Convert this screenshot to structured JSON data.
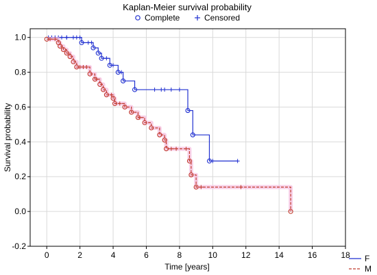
{
  "chart_data": {
    "type": "line",
    "title": "Kaplan-Meier survival probability",
    "xlabel": "Time  [years]",
    "ylabel": "Survival probability",
    "xlim": [
      -1,
      18
    ],
    "ylim": [
      -0.2,
      1.05
    ],
    "xticks": [
      0,
      2,
      4,
      6,
      8,
      10,
      12,
      14,
      16,
      18
    ],
    "yticks": [
      -0.2,
      0.0,
      0.2,
      0.4,
      0.6,
      0.8,
      1.0
    ],
    "grid": true,
    "marker_legend": {
      "position": "top-center",
      "complete_label": "Complete",
      "censored_label": "Censored"
    },
    "series_legend_position": "bottom-right",
    "series": [
      {
        "name": "F",
        "color": "#1f2fd0",
        "line_style": "solid",
        "steps": [
          [
            0,
            1.0
          ],
          [
            2.1,
            0.97
          ],
          [
            2.8,
            0.94
          ],
          [
            3.1,
            0.91
          ],
          [
            3.3,
            0.88
          ],
          [
            3.8,
            0.84
          ],
          [
            4.3,
            0.8
          ],
          [
            4.6,
            0.75
          ],
          [
            5.3,
            0.7
          ],
          [
            8.5,
            0.58
          ],
          [
            8.8,
            0.44
          ],
          [
            9.8,
            0.29
          ],
          [
            11.5,
            0.29
          ]
        ],
        "events": [
          [
            2.1,
            0.97
          ],
          [
            2.8,
            0.94
          ],
          [
            3.1,
            0.91
          ],
          [
            3.3,
            0.88
          ],
          [
            3.8,
            0.84
          ],
          [
            4.3,
            0.8
          ],
          [
            4.6,
            0.75
          ],
          [
            5.3,
            0.7
          ],
          [
            8.5,
            0.58
          ],
          [
            8.8,
            0.44
          ],
          [
            9.8,
            0.29
          ]
        ],
        "censored": [
          [
            0.1,
            1.0
          ],
          [
            0.3,
            1.0
          ],
          [
            0.5,
            1.0
          ],
          [
            0.7,
            1.0
          ],
          [
            0.9,
            1.0
          ],
          [
            1.2,
            1.0
          ],
          [
            1.2,
            1.0
          ],
          [
            1.6,
            1.0
          ],
          [
            1.8,
            1.0
          ],
          [
            2.0,
            1.0
          ],
          [
            2.5,
            0.97
          ],
          [
            2.7,
            0.97
          ],
          [
            3.6,
            0.88
          ],
          [
            4.0,
            0.84
          ],
          [
            4.5,
            0.8
          ],
          [
            6.5,
            0.7
          ],
          [
            6.9,
            0.7
          ],
          [
            7.1,
            0.7
          ],
          [
            7.5,
            0.7
          ],
          [
            8.0,
            0.7
          ],
          [
            10.0,
            0.29
          ],
          [
            11.5,
            0.29
          ]
        ]
      },
      {
        "name": "M",
        "color": "#c0392b",
        "line_style": "dashed",
        "steps": [
          [
            0,
            0.99
          ],
          [
            0.7,
            0.97
          ],
          [
            0.8,
            0.95
          ],
          [
            1.0,
            0.93
          ],
          [
            1.2,
            0.91
          ],
          [
            1.4,
            0.89
          ],
          [
            1.6,
            0.86
          ],
          [
            1.8,
            0.83
          ],
          [
            2.6,
            0.79
          ],
          [
            2.9,
            0.76
          ],
          [
            3.2,
            0.73
          ],
          [
            3.4,
            0.7
          ],
          [
            3.6,
            0.67
          ],
          [
            4.0,
            0.65
          ],
          [
            4.1,
            0.62
          ],
          [
            4.7,
            0.6
          ],
          [
            5.1,
            0.57
          ],
          [
            5.5,
            0.54
          ],
          [
            5.9,
            0.51
          ],
          [
            6.3,
            0.48
          ],
          [
            6.8,
            0.44
          ],
          [
            7.1,
            0.41
          ],
          [
            7.2,
            0.36
          ],
          [
            8.6,
            0.29
          ],
          [
            8.7,
            0.21
          ],
          [
            9.0,
            0.14
          ],
          [
            14.7,
            0.0
          ]
        ],
        "events": [
          [
            0,
            0.99
          ],
          [
            0.7,
            0.97
          ],
          [
            0.8,
            0.95
          ],
          [
            1.0,
            0.93
          ],
          [
            1.2,
            0.91
          ],
          [
            1.4,
            0.89
          ],
          [
            1.6,
            0.86
          ],
          [
            1.8,
            0.83
          ],
          [
            2.6,
            0.79
          ],
          [
            2.9,
            0.76
          ],
          [
            3.2,
            0.73
          ],
          [
            3.4,
            0.7
          ],
          [
            3.6,
            0.67
          ],
          [
            4.0,
            0.65
          ],
          [
            4.1,
            0.62
          ],
          [
            4.7,
            0.6
          ],
          [
            5.1,
            0.57
          ],
          [
            5.5,
            0.54
          ],
          [
            5.9,
            0.51
          ],
          [
            6.3,
            0.48
          ],
          [
            6.8,
            0.44
          ],
          [
            7.1,
            0.41
          ],
          [
            7.2,
            0.36
          ],
          [
            8.6,
            0.29
          ],
          [
            8.7,
            0.21
          ],
          [
            9.0,
            0.14
          ],
          [
            14.7,
            0.0
          ]
        ],
        "censored": [
          [
            0.2,
            0.99
          ],
          [
            0.5,
            0.99
          ],
          [
            2.0,
            0.83
          ],
          [
            2.2,
            0.83
          ],
          [
            2.4,
            0.83
          ],
          [
            3.0,
            0.76
          ],
          [
            3.9,
            0.67
          ],
          [
            4.4,
            0.62
          ],
          [
            5.6,
            0.54
          ],
          [
            7.5,
            0.36
          ],
          [
            7.8,
            0.36
          ],
          [
            8.4,
            0.36
          ],
          [
            9.3,
            0.14
          ],
          [
            11.7,
            0.14
          ]
        ]
      }
    ]
  }
}
